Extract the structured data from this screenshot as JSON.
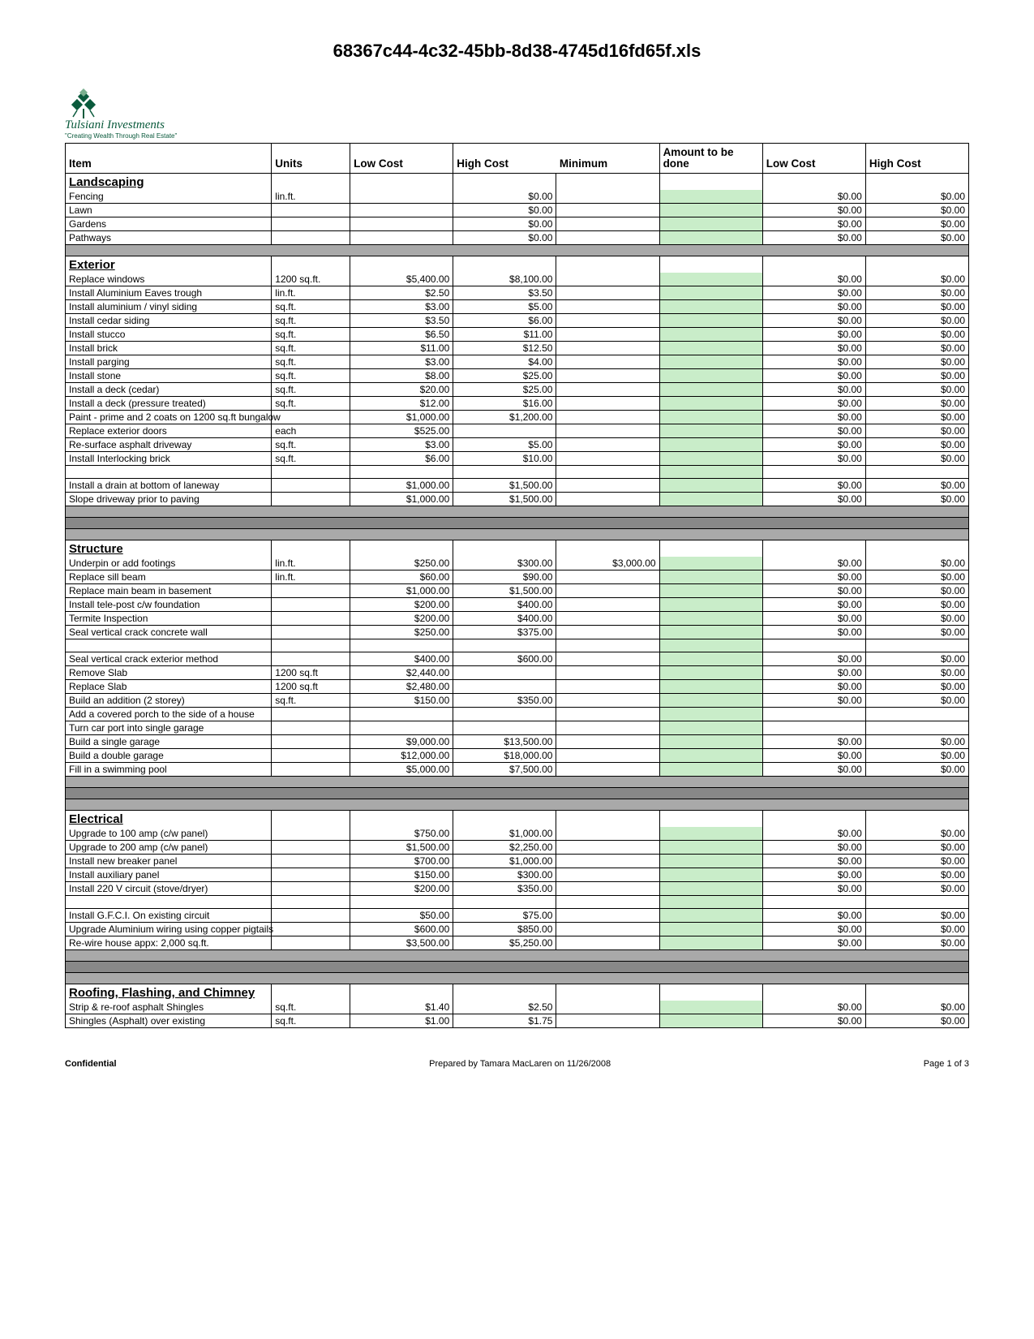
{
  "title": "68367c44-4c32-45bb-8d38-4745d16fd65f.xls",
  "logo": {
    "company": "Tulsiani Investments",
    "slogan": "\"Creating Wealth Through Real Estate\"",
    "icon_color": "#0a5a3c"
  },
  "headers": {
    "item": "Item",
    "units": "Units",
    "low_cost": "Low Cost",
    "high_cost": "High Cost",
    "minimum": "Minimum",
    "amount": "Amount to be done",
    "low_cost2": "Low Cost",
    "high_cost2": "High Cost"
  },
  "colors": {
    "section_spacer": "#a9a9a9",
    "dark_spacer": "#888888",
    "amount_fill": "#c9edc9",
    "border": "#000000"
  },
  "rows": [
    {
      "type": "section",
      "item": "Landscaping"
    },
    {
      "type": "data",
      "item": "Fencing",
      "units": "lin.ft.",
      "hc": "$0.00",
      "amt": true,
      "lc2": "$0.00",
      "hc2": "$0.00"
    },
    {
      "type": "data",
      "item": "Lawn",
      "hc": "$0.00",
      "amt": true,
      "lc2": "$0.00",
      "hc2": "$0.00"
    },
    {
      "type": "data",
      "item": "Gardens",
      "hc": "$0.00",
      "amt": true,
      "lc2": "$0.00",
      "hc2": "$0.00"
    },
    {
      "type": "data",
      "item": "Pathways",
      "hc": "$0.00",
      "amt": true,
      "lc2": "$0.00",
      "hc2": "$0.00"
    },
    {
      "type": "spacer"
    },
    {
      "type": "section",
      "item": "Exterior"
    },
    {
      "type": "data",
      "item": "Replace windows",
      "units": "1200 sq.ft.",
      "lc": "$5,400.00",
      "hc": "$8,100.00",
      "amt": true,
      "lc2": "$0.00",
      "hc2": "$0.00"
    },
    {
      "type": "data",
      "item": "Install Aluminium Eaves trough",
      "units": "lin.ft.",
      "lc": "$2.50",
      "hc": "$3.50",
      "amt": true,
      "lc2": "$0.00",
      "hc2": "$0.00"
    },
    {
      "type": "data",
      "item": "Install aluminium / vinyl siding",
      "units": "sq.ft.",
      "lc": "$3.00",
      "hc": "$5.00",
      "amt": true,
      "lc2": "$0.00",
      "hc2": "$0.00"
    },
    {
      "type": "data",
      "item": "Install cedar siding",
      "units": "sq.ft.",
      "lc": "$3.50",
      "hc": "$6.00",
      "amt": true,
      "lc2": "$0.00",
      "hc2": "$0.00"
    },
    {
      "type": "data",
      "item": "Install stucco",
      "units": "sq.ft.",
      "lc": "$6.50",
      "hc": "$11.00",
      "amt": true,
      "lc2": "$0.00",
      "hc2": "$0.00"
    },
    {
      "type": "data",
      "item": "Install brick",
      "units": "sq.ft.",
      "lc": "$11.00",
      "hc": "$12.50",
      "amt": true,
      "lc2": "$0.00",
      "hc2": "$0.00"
    },
    {
      "type": "data",
      "item": "Install parging",
      "units": "sq.ft.",
      "lc": "$3.00",
      "hc": "$4.00",
      "amt": true,
      "lc2": "$0.00",
      "hc2": "$0.00"
    },
    {
      "type": "data",
      "item": "Install stone",
      "units": "sq.ft.",
      "lc": "$8.00",
      "hc": "$25.00",
      "amt": true,
      "lc2": "$0.00",
      "hc2": "$0.00"
    },
    {
      "type": "data",
      "item": "Install a deck (cedar)",
      "units": "sq.ft.",
      "lc": "$20.00",
      "hc": "$25.00",
      "amt": true,
      "lc2": "$0.00",
      "hc2": "$0.00"
    },
    {
      "type": "data",
      "item": "Install a deck (pressure treated)",
      "units": "sq.ft.",
      "lc": "$12.00",
      "hc": "$16.00",
      "amt": true,
      "lc2": "$0.00",
      "hc2": "$0.00"
    },
    {
      "type": "data",
      "item": "Paint - prime and 2 coats on 1200 sq.ft bungalow",
      "lc": "$1,000.00",
      "hc": "$1,200.00",
      "amt": true,
      "lc2": "$0.00",
      "hc2": "$0.00"
    },
    {
      "type": "data",
      "item": "Replace exterior doors",
      "units": "each",
      "lc": "$525.00",
      "amt": true,
      "lc2": "$0.00",
      "hc2": "$0.00"
    },
    {
      "type": "data",
      "item": "Re-surface asphalt driveway",
      "units": "sq.ft.",
      "lc": "$3.00",
      "hc": "$5.00",
      "amt": true,
      "lc2": "$0.00",
      "hc2": "$0.00"
    },
    {
      "type": "data",
      "item": "Install Interlocking brick",
      "units": "sq.ft.",
      "lc": "$6.00",
      "hc": "$10.00",
      "amt": true,
      "lc2": "$0.00",
      "hc2": "$0.00"
    },
    {
      "type": "blank",
      "amt": true
    },
    {
      "type": "data",
      "item": "Install a drain at bottom of laneway",
      "lc": "$1,000.00",
      "hc": "$1,500.00",
      "amt": true,
      "lc2": "$0.00",
      "hc2": "$0.00"
    },
    {
      "type": "data",
      "item": "Slope driveway prior to paving",
      "lc": "$1,000.00",
      "hc": "$1,500.00",
      "amt": true,
      "lc2": "$0.00",
      "hc2": "$0.00"
    },
    {
      "type": "spacer"
    },
    {
      "type": "dark"
    },
    {
      "type": "spacer"
    },
    {
      "type": "section",
      "item": "Structure"
    },
    {
      "type": "data",
      "item": "Underpin or add footings",
      "units": "lin.ft.",
      "lc": "$250.00",
      "hc": "$300.00",
      "min": "$3,000.00",
      "amt": true,
      "lc2": "$0.00",
      "hc2": "$0.00"
    },
    {
      "type": "data",
      "item": "Replace sill beam",
      "units": "lin.ft.",
      "lc": "$60.00",
      "hc": "$90.00",
      "amt": true,
      "lc2": "$0.00",
      "hc2": "$0.00"
    },
    {
      "type": "data",
      "item": "Replace main beam in basement",
      "lc": "$1,000.00",
      "hc": "$1,500.00",
      "amt": true,
      "lc2": "$0.00",
      "hc2": "$0.00"
    },
    {
      "type": "data",
      "item": "Install tele-post c/w foundation",
      "lc": "$200.00",
      "hc": "$400.00",
      "amt": true,
      "lc2": "$0.00",
      "hc2": "$0.00"
    },
    {
      "type": "data",
      "item": "Termite Inspection",
      "lc": "$200.00",
      "hc": "$400.00",
      "amt": true,
      "lc2": "$0.00",
      "hc2": "$0.00"
    },
    {
      "type": "data",
      "item": "Seal vertical crack concrete wall",
      "lc": "$250.00",
      "hc": "$375.00",
      "amt": true,
      "lc2": "$0.00",
      "hc2": "$0.00"
    },
    {
      "type": "blank",
      "amt": true
    },
    {
      "type": "data",
      "item": "Seal vertical crack exterior method",
      "lc": "$400.00",
      "hc": "$600.00",
      "amt": true,
      "lc2": "$0.00",
      "hc2": "$0.00"
    },
    {
      "type": "data",
      "item": "Remove Slab",
      "units": "1200 sq.ft",
      "lc": "$2,440.00",
      "amt": true,
      "lc2": "$0.00",
      "hc2": "$0.00"
    },
    {
      "type": "data",
      "item": "Replace Slab",
      "units": "1200 sq.ft",
      "lc": "$2,480.00",
      "amt": true,
      "lc2": "$0.00",
      "hc2": "$0.00"
    },
    {
      "type": "data",
      "item": "Build an addition (2 storey)",
      "units": "sq.ft.",
      "lc": "$150.00",
      "hc": "$350.00",
      "amt": true,
      "lc2": "$0.00",
      "hc2": "$0.00"
    },
    {
      "type": "data",
      "item": "Add a covered porch to the side of a house",
      "amt": true
    },
    {
      "type": "data",
      "item": "Turn car port into single garage",
      "amt": true
    },
    {
      "type": "data",
      "item": "Build a single garage",
      "lc": "$9,000.00",
      "hc": "$13,500.00",
      "amt": true,
      "lc2": "$0.00",
      "hc2": "$0.00"
    },
    {
      "type": "data",
      "item": "Build a double garage",
      "lc": "$12,000.00",
      "hc": "$18,000.00",
      "amt": true,
      "lc2": "$0.00",
      "hc2": "$0.00"
    },
    {
      "type": "data",
      "item": "Fill in a swimming pool",
      "lc": "$5,000.00",
      "hc": "$7,500.00",
      "amt": true,
      "lc2": "$0.00",
      "hc2": "$0.00"
    },
    {
      "type": "spacer"
    },
    {
      "type": "dark"
    },
    {
      "type": "spacer"
    },
    {
      "type": "section",
      "item": "Electrical"
    },
    {
      "type": "data",
      "item": "Upgrade to 100 amp (c/w panel)",
      "lc": "$750.00",
      "hc": "$1,000.00",
      "amt": true,
      "lc2": "$0.00",
      "hc2": "$0.00"
    },
    {
      "type": "data",
      "item": "Upgrade to 200 amp (c/w panel)",
      "lc": "$1,500.00",
      "hc": "$2,250.00",
      "amt": true,
      "lc2": "$0.00",
      "hc2": "$0.00"
    },
    {
      "type": "data",
      "item": "Install new breaker panel",
      "lc": "$700.00",
      "hc": "$1,000.00",
      "amt": true,
      "lc2": "$0.00",
      "hc2": "$0.00"
    },
    {
      "type": "data",
      "item": "Install auxiliary panel",
      "lc": "$150.00",
      "hc": "$300.00",
      "amt": true,
      "lc2": "$0.00",
      "hc2": "$0.00"
    },
    {
      "type": "data",
      "item": "Install 220 V circuit (stove/dryer)",
      "lc": "$200.00",
      "hc": "$350.00",
      "amt": true,
      "lc2": "$0.00",
      "hc2": "$0.00"
    },
    {
      "type": "blank",
      "amt": true
    },
    {
      "type": "data",
      "item": "Install G.F.C.I. On existing circuit",
      "lc": "$50.00",
      "hc": "$75.00",
      "amt": true,
      "lc2": "$0.00",
      "hc2": "$0.00"
    },
    {
      "type": "data",
      "item": "Upgrade Aluminium wiring using copper pigtails",
      "lc": "$600.00",
      "hc": "$850.00",
      "amt": true,
      "lc2": "$0.00",
      "hc2": "$0.00"
    },
    {
      "type": "data",
      "item": "Re-wire house appx: 2,000 sq.ft.",
      "lc": "$3,500.00",
      "hc": "$5,250.00",
      "amt": true,
      "lc2": "$0.00",
      "hc2": "$0.00"
    },
    {
      "type": "spacer"
    },
    {
      "type": "dark"
    },
    {
      "type": "spacer"
    },
    {
      "type": "section",
      "item": "Roofing, Flashing, and Chimney"
    },
    {
      "type": "data",
      "item": "Strip & re-roof asphalt Shingles",
      "units": "sq.ft.",
      "lc": "$1.40",
      "hc": "$2.50",
      "amt": true,
      "lc2": "$0.00",
      "hc2": "$0.00"
    },
    {
      "type": "data",
      "item": "Shingles (Asphalt) over existing",
      "units": "sq.ft.",
      "lc": "$1.00",
      "hc": "$1.75",
      "amt": true,
      "lc2": "$0.00",
      "hc2": "$0.00"
    }
  ],
  "footer": {
    "left": "Confidential",
    "center": "Prepared by Tamara MacLaren on 11/26/2008",
    "right": "Page 1 of 3"
  }
}
